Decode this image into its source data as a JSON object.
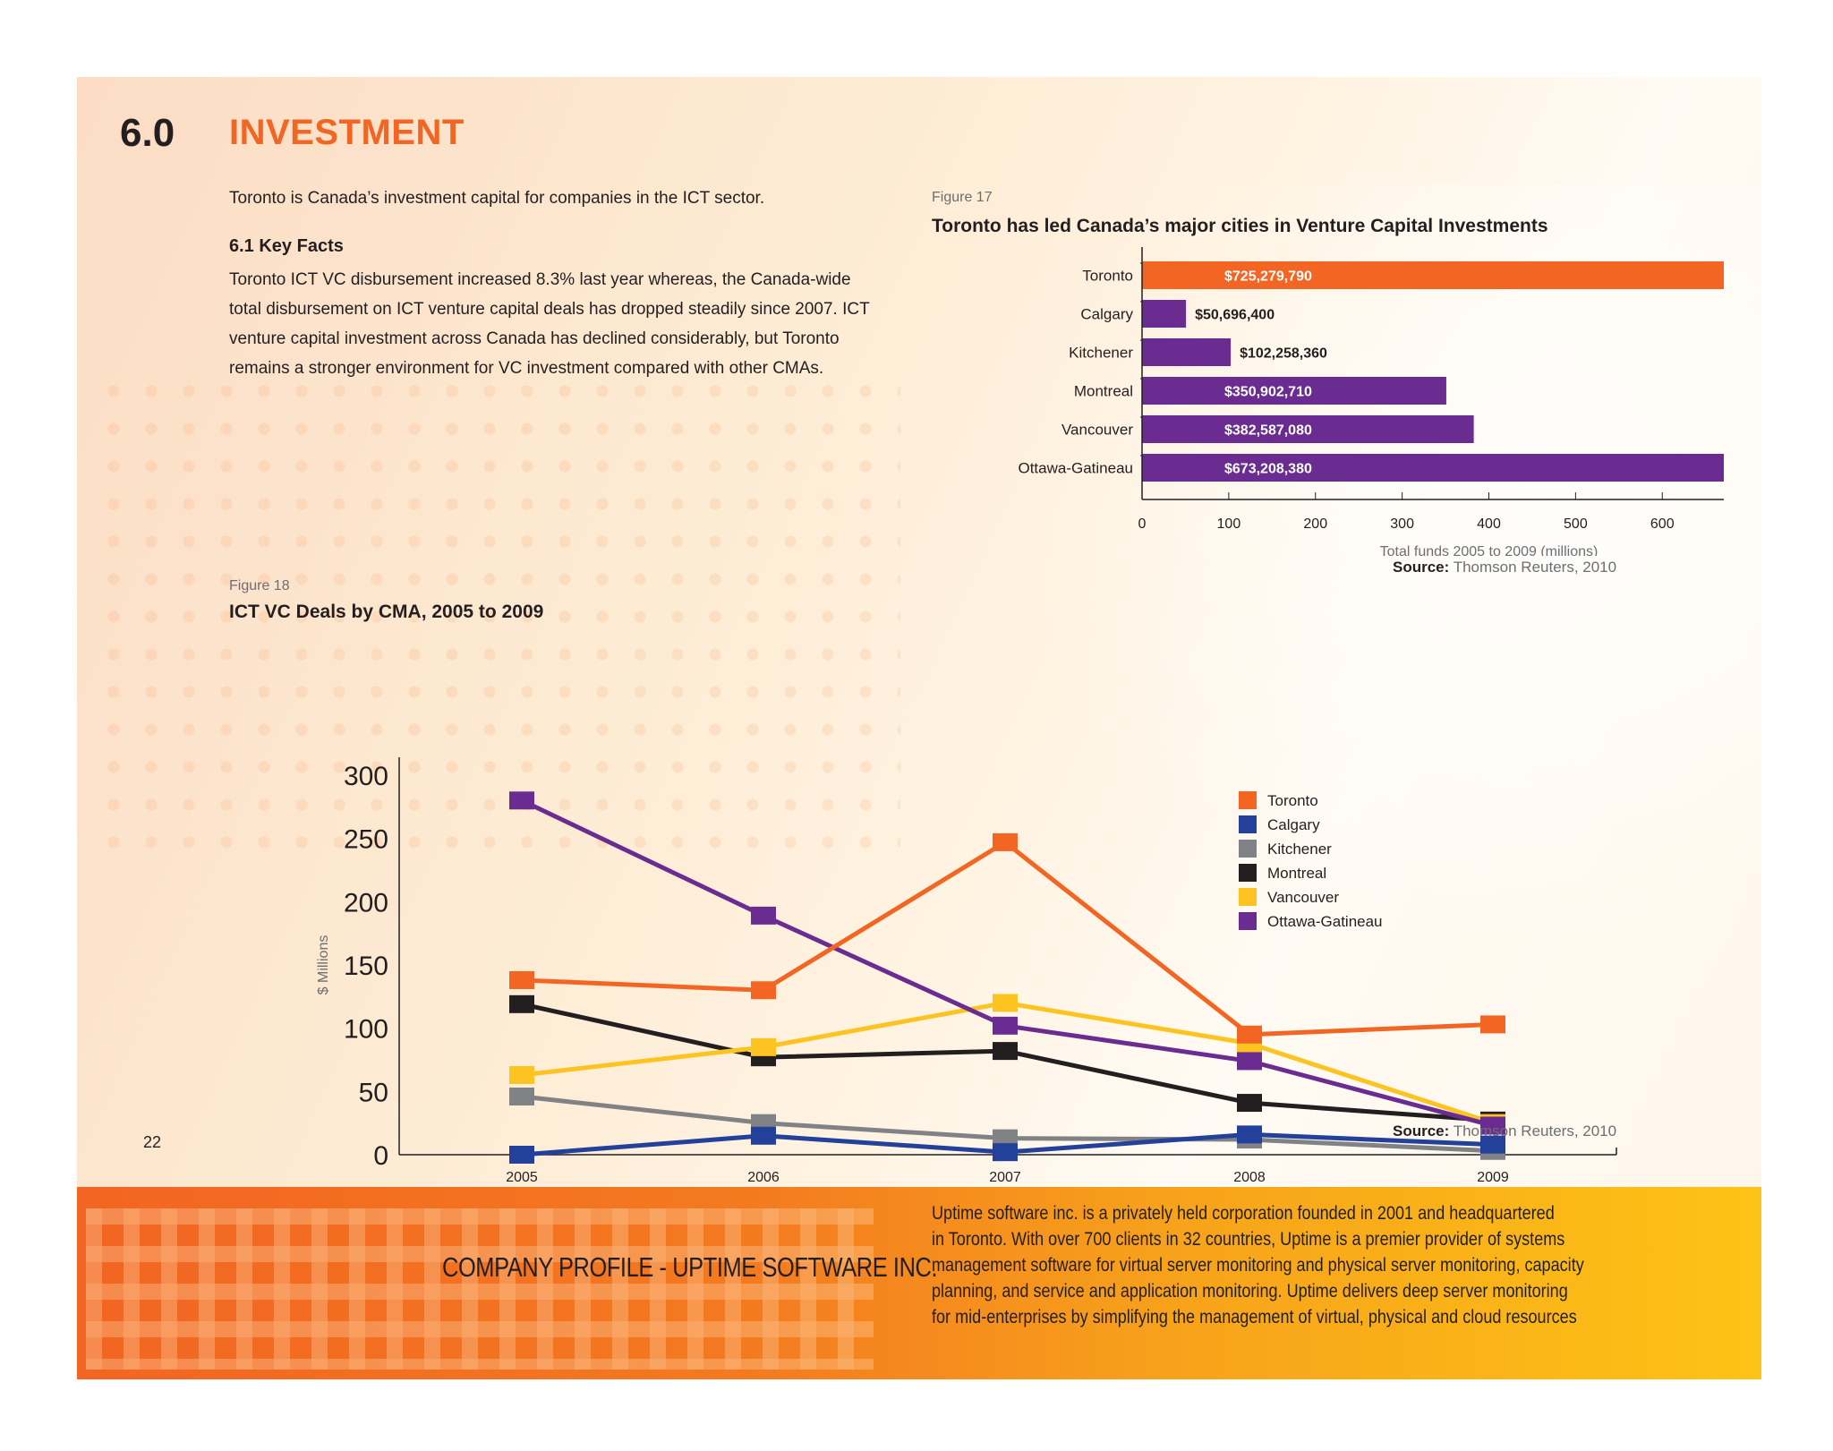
{
  "section": {
    "number": "6.0",
    "title": "INVESTMENT",
    "intro": "Toronto is Canada’s investment capital for companies in the ICT sector."
  },
  "key_facts": {
    "heading": "6.1 Key Facts",
    "lines": [
      "Toronto ICT VC disbursement increased 8.3% last year whereas, the Canada-wide",
      "total disbursement on ICT venture capital deals has dropped steadily since 2007.  ICT",
      "venture capital investment across Canada has declined considerably, but Toronto",
      "remains a stronger environment for VC investment compared with other CMAs."
    ]
  },
  "figure17": {
    "label": "Figure 17",
    "title": "Toronto has led Canada’s major cities in Venture Capital Investments",
    "source_label": "Source:",
    "source_text": " Thomson Reuters, 2010"
  },
  "figure18": {
    "label": "Figure 18",
    "title": "ICT VC Deals by CMA, 2005 to 2009",
    "source_label": "Source:",
    "source_text": " Thomson Reuters, 2010"
  },
  "colors": {
    "orange": "#f26522",
    "purple": "#6a2c91",
    "blue": "#23409a",
    "gray": "#808285",
    "black": "#231f20",
    "yellow": "#fdc421"
  },
  "chart_data": [
    {
      "type": "bar",
      "orientation": "horizontal",
      "title": "Toronto has led Canada’s major cities in Venture Capital Investments",
      "xlabel": "Total funds 2005 to 2009 (millions)",
      "categories": [
        "Toronto",
        "Calgary",
        "Kitchener",
        "Montreal",
        "Vancouver",
        "Ottawa-Gatineau"
      ],
      "values": [
        725.27979,
        50.6964,
        102.25836,
        350.90271,
        382.58708,
        673.20838
      ],
      "data_labels": [
        "$725,279,790",
        "$50,696,400",
        "$102,258,360",
        "$350,902,710",
        "$382,587,080",
        "$673,208,380"
      ],
      "bar_colors": [
        "#f26522",
        "#6a2c91",
        "#6a2c91",
        "#6a2c91",
        "#6a2c91",
        "#6a2c91"
      ],
      "xlim": [
        0,
        800
      ],
      "xticks": [
        0,
        100,
        200,
        300,
        400,
        500,
        600,
        700,
        800
      ]
    },
    {
      "type": "line",
      "title": "ICT VC Deals by CMA, 2005 to 2009",
      "ylabel": "$ Millions",
      "x": [
        "2005",
        "2006",
        "2007",
        "2008",
        "2009"
      ],
      "ylim": [
        0,
        300
      ],
      "yticks": [
        0,
        50,
        100,
        150,
        200,
        250,
        300
      ],
      "legend_position": "top-right",
      "series": [
        {
          "name": "Toronto",
          "color": "#f26522",
          "values": [
            138,
            130,
            247,
            95,
            103
          ]
        },
        {
          "name": "Calgary",
          "color": "#23409a",
          "values": [
            0,
            15,
            2,
            16,
            8
          ]
        },
        {
          "name": "Kitchener",
          "color": "#808285",
          "values": [
            46,
            25,
            13,
            12,
            3
          ]
        },
        {
          "name": "Montreal",
          "color": "#231f20",
          "values": [
            119,
            77,
            82,
            41,
            27
          ]
        },
        {
          "name": "Vancouver",
          "color": "#fdc421",
          "values": [
            63,
            85,
            120,
            88,
            25
          ]
        },
        {
          "name": "Ottawa-Gatineau",
          "color": "#6a2c91",
          "values": [
            280,
            189,
            102,
            74,
            23
          ]
        }
      ]
    }
  ],
  "page_number": "22",
  "footer": {
    "company": "COMPANY PROFILE - UPTIME SOFTWARE INC.",
    "profile_lines": [
      "Uptime software inc. is a privately held corporation founded in 2001 and headquartered",
      "in Toronto. With over 700 clients in 32 countries, Uptime is a premier provider of systems",
      "management software for virtual server monitoring and physical server monitoring, capacity",
      "planning, and service and application monitoring. Uptime delivers deep server monitoring",
      "for mid-enterprises by simplifying the management of virtual, physical and cloud resources"
    ]
  }
}
